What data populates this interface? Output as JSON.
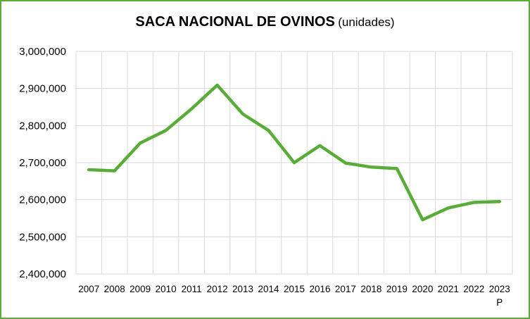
{
  "chart_data": {
    "type": "line",
    "title": "SACA NACIONAL DE OVINOS",
    "title_unit": "(unidades)",
    "categories": [
      "2007",
      "2008",
      "2009",
      "2010",
      "2011",
      "2012",
      "2013",
      "2014",
      "2015",
      "2016",
      "2017",
      "2018",
      "2019",
      "2020",
      "2021",
      "2022",
      "2023"
    ],
    "category_footnotes": {
      "2023": "P"
    },
    "series": [
      {
        "color": "#5aac3a",
        "values": [
          2681000,
          2678000,
          2753000,
          2787000,
          2845000,
          2909000,
          2831000,
          2787000,
          2700000,
          2746000,
          2699000,
          2688000,
          2684000,
          2546000,
          2578000,
          2593000,
          2595000
        ]
      }
    ],
    "ylim": [
      2400000,
      3000000
    ],
    "yticks": [
      2400000,
      2500000,
      2600000,
      2700000,
      2800000,
      2900000,
      3000000
    ],
    "ytick_labels": [
      "2,400,000",
      "2,500,000",
      "2,600,000",
      "2,700,000",
      "2,800,000",
      "2,900,000",
      "3,000,000"
    ],
    "grid": true,
    "frame_color": "#5aac3a",
    "grid_color": "#d9d9d9"
  }
}
